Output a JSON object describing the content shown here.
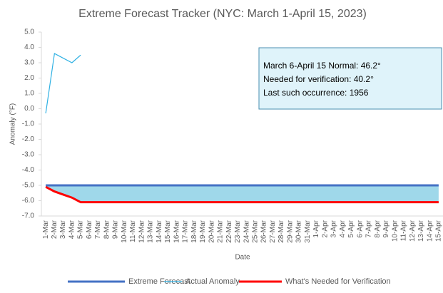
{
  "chart_data": {
    "type": "line",
    "title": "Extreme Forecast Tracker (NYC: March 1-April 15, 2023)",
    "y_label": "Anomaly (°F)",
    "x_label": "Date",
    "categories": [
      "1-Mar",
      "2-Mar",
      "3-Mar",
      "4-Mar",
      "5-Mar",
      "6-Mar",
      "7-Mar",
      "8-Mar",
      "9-Mar",
      "10-Mar",
      "11-Mar",
      "12-Mar",
      "13-Mar",
      "14-Mar",
      "15-Mar",
      "16-Mar",
      "17-Mar",
      "18-Mar",
      "19-Mar",
      "20-Mar",
      "21-Mar",
      "22-Mar",
      "23-Mar",
      "24-Mar",
      "25-Mar",
      "26-Mar",
      "27-Mar",
      "28-Mar",
      "29-Mar",
      "30-Mar",
      "31-Mar",
      "1-Apr",
      "2-Apr",
      "3-Apr",
      "4-Apr",
      "5-Apr",
      "6-Apr",
      "7-Apr",
      "8-Apr",
      "9-Apr",
      "10-Apr",
      "11-Apr",
      "12-Apr",
      "13-Apr",
      "14-Apr",
      "15-Apr"
    ],
    "series": [
      {
        "name": "Extreme Forecast",
        "color": "#4472c4",
        "width": 3,
        "values": [
          -5,
          -5,
          -5,
          -5,
          -5,
          -5,
          -5,
          -5,
          -5,
          -5,
          -5,
          -5,
          -5,
          -5,
          -5,
          -5,
          -5,
          -5,
          -5,
          -5,
          -5,
          -5,
          -5,
          -5,
          -5,
          -5,
          -5,
          -5,
          -5,
          -5,
          -5,
          -5,
          -5,
          -5,
          -5,
          -5,
          -5,
          -5,
          -5,
          -5,
          -5,
          -5,
          -5,
          -5,
          -5,
          -5
        ]
      },
      {
        "name": "Actual Anomaly",
        "color": "#2fb1e3",
        "width": 1.2,
        "values": [
          -0.3,
          3.6,
          3.3,
          3.0,
          3.5,
          null,
          null,
          null,
          null,
          null,
          null,
          null,
          null,
          null,
          null,
          null,
          null,
          null,
          null,
          null,
          null,
          null,
          null,
          null,
          null,
          null,
          null,
          null,
          null,
          null,
          null,
          null,
          null,
          null,
          null,
          null,
          null,
          null,
          null,
          null,
          null,
          null,
          null,
          null,
          null,
          null
        ]
      },
      {
        "name": "What's Needed for Verification",
        "color": "#ff0000",
        "width": 3,
        "values": [
          -5.1,
          -5.4,
          -5.6,
          -5.8,
          -6.1,
          -6.1,
          -6.1,
          -6.1,
          -6.1,
          -6.1,
          -6.1,
          -6.1,
          -6.1,
          -6.1,
          -6.1,
          -6.1,
          -6.1,
          -6.1,
          -6.1,
          -6.1,
          -6.1,
          -6.1,
          -6.1,
          -6.1,
          -6.1,
          -6.1,
          -6.1,
          -6.1,
          -6.1,
          -6.1,
          -6.1,
          -6.1,
          -6.1,
          -6.1,
          -6.1,
          -6.1,
          -6.1,
          -6.1,
          -6.1,
          -6.1,
          -6.1,
          -6.1,
          -6.1,
          -6.1,
          -6.1,
          -6.1
        ]
      }
    ],
    "fill_between_color": "#9fd8ea",
    "ylim": [
      -7,
      5
    ],
    "yticks": [
      {
        "value": 5,
        "label": "5.0"
      },
      {
        "value": 4,
        "label": "4.0"
      },
      {
        "value": 3,
        "label": "3.0"
      },
      {
        "value": 2,
        "label": "2.0"
      },
      {
        "value": 1,
        "label": "1.0"
      },
      {
        "value": 0,
        "label": "0.0"
      },
      {
        "value": -1,
        "label": "-1.0"
      },
      {
        "value": -2,
        "label": "-2.0"
      },
      {
        "value": -3,
        "label": "-3.0"
      },
      {
        "value": -4,
        "label": "-4.0"
      },
      {
        "value": -5,
        "label": "-5.0"
      },
      {
        "value": -6,
        "label": "-6.0"
      },
      {
        "value": -7,
        "label": "-7.0"
      }
    ],
    "annotations": [
      "March 6-April 15 Normal: 46.2°",
      "Needed for verification: 40.2°",
      "Last such occurrence: 1956"
    ],
    "legend": "bottom"
  }
}
